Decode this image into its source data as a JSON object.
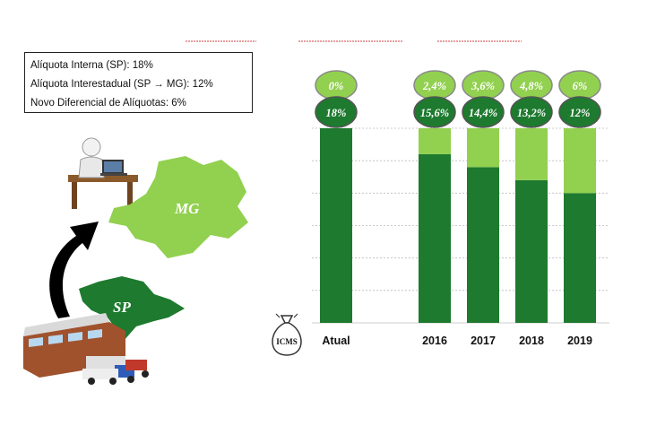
{
  "rates_box": {
    "internal": "Alíquota Interna (SP): 18%",
    "interstate": "Alíquota Interestadual (SP → MG): 12%",
    "differential": "Novo Diferencial de Alíquotas: 6%"
  },
  "illustration": {
    "state_destination": "MG",
    "state_origin": "SP",
    "tax_bag_label": "ICMS"
  },
  "colors": {
    "dark_green": "#1d7a2e",
    "light_green": "#92d050",
    "grid": "#bbbbbb"
  },
  "chart_data": {
    "type": "bar",
    "stacked": true,
    "categories": [
      "Atual",
      "2016",
      "2017",
      "2018",
      "2019"
    ],
    "series": [
      {
        "color": "#1d7a2e",
        "values": [
          18,
          15.6,
          14.4,
          13.2,
          12
        ],
        "labels": [
          "18%",
          "15,6%",
          "14,4%",
          "13,2%",
          "12%"
        ]
      },
      {
        "color": "#92d050",
        "values": [
          0,
          2.4,
          3.6,
          4.8,
          6
        ],
        "labels": [
          "0%",
          "2,4%",
          "3,6%",
          "4,8%",
          "6%"
        ]
      }
    ],
    "ylim": [
      0,
      18
    ],
    "grid": true,
    "legend": "none"
  }
}
